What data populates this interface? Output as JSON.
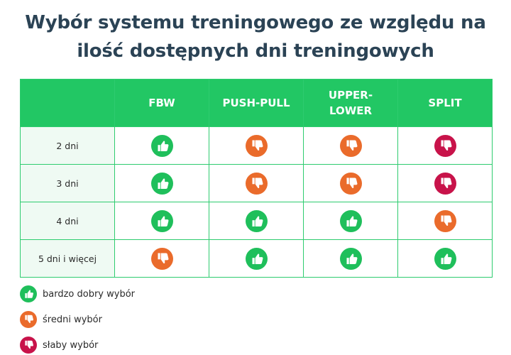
{
  "title_line1": "Wybór systemu treningowego ze względu na",
  "title_line2": "ilość dostępnych dni treningowych",
  "columns": [
    "FBW",
    "PUSH-PULL",
    "UPPER-\nLOWER",
    "SPLIT"
  ],
  "rows": [
    {
      "label": "2 dni",
      "ratings": [
        "good",
        "avg",
        "avg",
        "bad"
      ]
    },
    {
      "label": "3 dni",
      "ratings": [
        "good",
        "avg",
        "avg",
        "bad"
      ]
    },
    {
      "label": "4 dni",
      "ratings": [
        "good",
        "good",
        "good",
        "avg"
      ]
    },
    {
      "label": "5 dni i więcej",
      "ratings": [
        "avg",
        "good",
        "good",
        "good"
      ]
    }
  ],
  "legend": [
    {
      "rating": "good",
      "label": "bardzo dobry wybór"
    },
    {
      "rating": "avg",
      "label": "średni wybór"
    },
    {
      "rating": "bad",
      "label": "słaby wybór"
    }
  ],
  "colors": {
    "good": "#1fbf5b",
    "avg": "#ea6b2b",
    "bad": "#c8134a",
    "header": "#22c764"
  },
  "icons": {
    "good": "thumbs-up-icon",
    "avg": "thumbs-down-icon",
    "bad": "thumbs-down-icon"
  }
}
